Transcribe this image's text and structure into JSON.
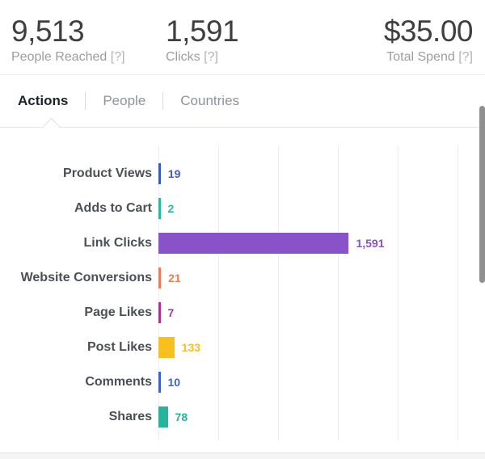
{
  "header": {
    "stats": [
      {
        "value": "9,513",
        "label": "People Reached",
        "help": "[?]"
      },
      {
        "value": "1,591",
        "label": "Clicks",
        "help": "[?]"
      },
      {
        "value": "$35.00",
        "label": "Total Spend",
        "help": "[?]"
      }
    ]
  },
  "tabs": {
    "active": "Actions",
    "items": [
      {
        "label": "Actions"
      },
      {
        "label": "People"
      },
      {
        "label": "Countries"
      }
    ]
  },
  "chart_data": {
    "type": "bar",
    "orientation": "horizontal",
    "title": "",
    "xlabel": "",
    "ylabel": "",
    "categories": [
      "Product Views",
      "Adds to Cart",
      "Link Clicks",
      "Website Conversions",
      "Page Likes",
      "Post Likes",
      "Comments",
      "Shares"
    ],
    "values": [
      19,
      2,
      1591,
      21,
      7,
      133,
      10,
      78
    ],
    "value_labels": [
      "19",
      "2",
      "1,591",
      "21",
      "7",
      "133",
      "10",
      "78"
    ],
    "colors": [
      "#3c5bbf",
      "#2fb79d",
      "#8a52c8",
      "#e87e5b",
      "#a73790",
      "#f7c01e",
      "#3f63c8",
      "#28b39c"
    ],
    "xlim": [
      0,
      2500
    ],
    "grid_step": 500,
    "grid": true,
    "legend": false,
    "gridline_color": "#ededed"
  }
}
